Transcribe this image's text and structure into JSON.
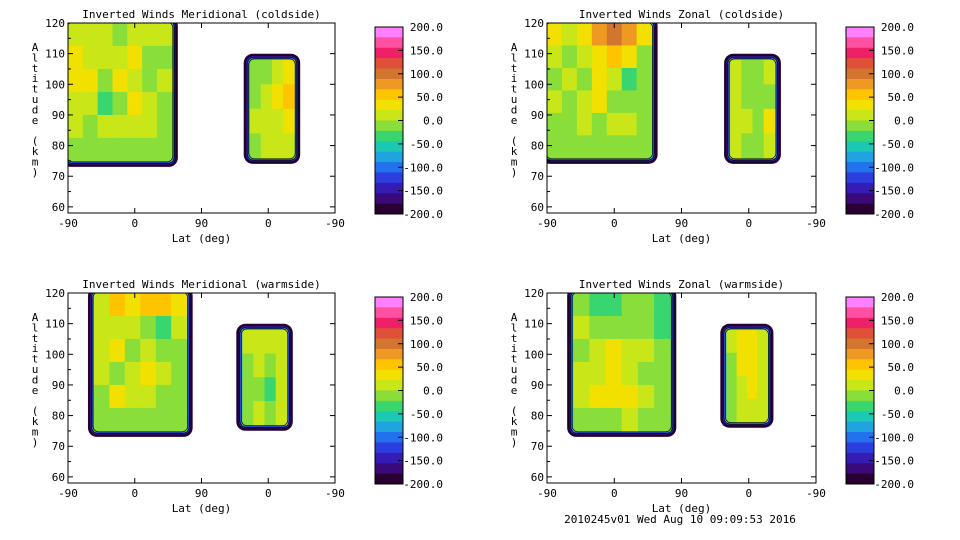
{
  "footer": "2010245v01 Wed Aug 10 09:09:53 2016",
  "colorbar": {
    "tick_labels": [
      "200.0",
      "150.0",
      "100.0",
      "50.0",
      "0.0",
      "-50.0",
      "-100.0",
      "-150.0",
      "-200.0"
    ],
    "colors": [
      "#ff80ff",
      "#ff4fa0",
      "#ee2068",
      "#e05038",
      "#d2752e",
      "#ee9a22",
      "#ffc400",
      "#f2e000",
      "#c8e618",
      "#8ade3a",
      "#39d56e",
      "#1ac8b4",
      "#1fa4e0",
      "#2272ee",
      "#2c3ede",
      "#341cb4",
      "#3a0a7a",
      "#2a0033"
    ]
  },
  "chart_data": [
    {
      "type": "heatmap",
      "title": "Inverted Winds Meridional (coldside)",
      "xlabel": "Lat (deg)",
      "ylabel": "Altitude (km)",
      "x_tick_labels": [
        "-90",
        "0",
        "90",
        "0",
        "-90"
      ],
      "y_tick_labels": [
        "60",
        "70",
        "80",
        "90",
        "100",
        "110",
        "120"
      ],
      "ylim": [
        58,
        120
      ],
      "zlim": [
        -200,
        200
      ],
      "regions": [
        {
          "x_range": [
            -90,
            50
          ],
          "alt_range": [
            75,
            120
          ],
          "cells": [
            [
              10,
              20,
              5,
              -10,
              15,
              10,
              5
            ],
            [
              30,
              15,
              10,
              20,
              25,
              -5,
              0
            ],
            [
              35,
              25,
              -5,
              30,
              10,
              -10,
              5
            ],
            [
              20,
              5,
              -25,
              0,
              30,
              20,
              0
            ],
            [
              5,
              -10,
              5,
              15,
              10,
              5,
              -5
            ],
            [
              -10,
              -5,
              0,
              -10,
              -5,
              -15,
              -20
            ]
          ]
        },
        {
          "x_range": [
            155,
            215
          ],
          "alt_range": [
            76,
            108
          ],
          "cells": [
            [
              0,
              -15,
              10,
              25
            ],
            [
              -10,
              10,
              25,
              45
            ],
            [
              10,
              20,
              20,
              40
            ],
            [
              -5,
              10,
              15,
              20
            ]
          ]
        }
      ]
    },
    {
      "type": "heatmap",
      "title": "Inverted Winds Zonal (coldside)",
      "xlabel": "Lat (deg)",
      "ylabel": "Altitude (km)",
      "x_tick_labels": [
        "-90",
        "0",
        "90",
        "0",
        "-90"
      ],
      "y_tick_labels": [
        "60",
        "70",
        "80",
        "90",
        "100",
        "110",
        "120"
      ],
      "ylim": [
        58,
        120
      ],
      "zlim": [
        -200,
        200
      ],
      "regions": [
        {
          "x_range": [
            -90,
            50
          ],
          "alt_range": [
            76,
            120
          ],
          "cells": [
            [
              40,
              20,
              40,
              70,
              110,
              80,
              30
            ],
            [
              20,
              0,
              10,
              40,
              60,
              30,
              -10
            ],
            [
              -5,
              10,
              -10,
              35,
              20,
              -25,
              -20
            ],
            [
              5,
              -10,
              15,
              30,
              -5,
              -10,
              0
            ],
            [
              0,
              -15,
              10,
              -20,
              5,
              15,
              -5
            ],
            [
              -10,
              -5,
              -15,
              -5,
              0,
              -10,
              -15
            ]
          ]
        },
        {
          "x_range": [
            155,
            215
          ],
          "alt_range": [
            76,
            108
          ],
          "cells": [
            [
              10,
              -15,
              -10,
              5
            ],
            [
              15,
              -5,
              -20,
              0
            ],
            [
              20,
              5,
              -10,
              25
            ],
            [
              15,
              0,
              0,
              10
            ]
          ]
        }
      ]
    },
    {
      "type": "heatmap",
      "title": "Inverted Winds Meridional (warmside)",
      "xlabel": "Lat (deg)",
      "ylabel": "Altitude (km)",
      "x_tick_labels": [
        "-90",
        "0",
        "90",
        "0",
        "-90"
      ],
      "y_tick_labels": [
        "60",
        "70",
        "80",
        "90",
        "100",
        "110",
        "120"
      ],
      "ylim": [
        58,
        120
      ],
      "zlim": [
        -200,
        200
      ],
      "regions": [
        {
          "x_range": [
            -55,
            70
          ],
          "alt_range": [
            75,
            120
          ],
          "cells": [
            [
              20,
              45,
              40,
              50,
              45,
              30
            ],
            [
              15,
              5,
              20,
              -10,
              -30,
              5
            ],
            [
              5,
              25,
              0,
              20,
              -15,
              0
            ],
            [
              10,
              -5,
              10,
              35,
              5,
              -10
            ],
            [
              0,
              30,
              5,
              10,
              0,
              -15
            ],
            [
              -10,
              -5,
              -5,
              -10,
              -15,
              -20
            ]
          ]
        },
        {
          "x_range": [
            145,
            205
          ],
          "alt_range": [
            77,
            108
          ],
          "cells": [
            [
              5,
              10,
              15,
              20
            ],
            [
              -20,
              5,
              -15,
              10
            ],
            [
              -10,
              0,
              -25,
              20
            ],
            [
              -5,
              10,
              -10,
              15
            ]
          ]
        }
      ]
    },
    {
      "type": "heatmap",
      "title": "Inverted Winds Zonal (warmside)",
      "xlabel": "Lat (deg)",
      "ylabel": "Altitude (km)",
      "x_tick_labels": [
        "-90",
        "0",
        "90",
        "0",
        "-90"
      ],
      "y_tick_labels": [
        "60",
        "70",
        "80",
        "90",
        "100",
        "110",
        "120"
      ],
      "ylim": [
        58,
        120
      ],
      "zlim": [
        -200,
        200
      ],
      "regions": [
        {
          "x_range": [
            -55,
            75
          ],
          "alt_range": [
            75,
            120
          ],
          "cells": [
            [
              -20,
              -30,
              -25,
              -15,
              -20,
              -35
            ],
            [
              10,
              -5,
              -15,
              0,
              -10,
              -25
            ],
            [
              0,
              15,
              35,
              20,
              5,
              -10
            ],
            [
              5,
              20,
              25,
              15,
              0,
              -5
            ],
            [
              10,
              25,
              35,
              30,
              10,
              -10
            ],
            [
              -5,
              0,
              -5,
              5,
              -10,
              -15
            ]
          ]
        },
        {
          "x_range": [
            150,
            205
          ],
          "alt_range": [
            78,
            108
          ],
          "cells": [
            [
              10,
              35,
              40,
              15
            ],
            [
              -10,
              25,
              30,
              5
            ],
            [
              0,
              20,
              35,
              10
            ],
            [
              -5,
              15,
              20,
              5
            ]
          ]
        }
      ]
    }
  ]
}
